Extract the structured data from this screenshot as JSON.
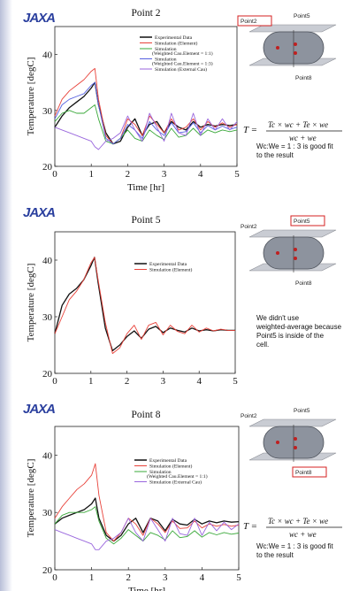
{
  "logo": "JAXA",
  "common": {
    "xlabel": "Time [hr]",
    "ylabel": "Temperature [degC]"
  },
  "panels": [
    {
      "title": "Point 2",
      "highlight": "Point2",
      "cell_labels": [
        "Point2",
        "Point5",
        "Point8"
      ],
      "legend": [
        "Experimental Data",
        "Simulation (Element)",
        "Simulation",
        "(Weighted Cau.Element = 1:1)",
        "Simulation",
        "(Weighted Cau.Element = 1:3)",
        "Simulation (External Cau)"
      ],
      "formula": "T = (Tc × wc + Te × we) / (wc + we)",
      "note": "Wc:We = 1 : 3 is good fit to the result"
    },
    {
      "title": "Point 5",
      "highlight": "Point5",
      "cell_labels": [
        "Point2",
        "Point5",
        "Point8"
      ],
      "legend": [
        "Experimental Data",
        "Simulation (Element)"
      ],
      "note": "We didn't use weighted-average because Point5 is inside of the cell."
    },
    {
      "title": "Point 8",
      "highlight": "Point8",
      "cell_labels": [
        "Point2",
        "Point5",
        "Point8"
      ],
      "legend": [
        "Experimental Data",
        "Simulation (Element)",
        "Simulation",
        "(Weighted Cau.Element = 1:1)",
        "Simulation (External Cau)"
      ],
      "formula": "T = (Tc × wc + Te × we) / (wc + we)",
      "note": "Wc:We = 1 : 3 is good fit to the result"
    }
  ],
  "colors": {
    "exp": "#111111",
    "element": "#e8423a",
    "weighted11": "#3aa83a",
    "weighted13": "#5560e0",
    "external": "#9966dd",
    "highlight": "#d42020"
  },
  "chart_data": [
    {
      "type": "line",
      "title": "Point 2",
      "xlabel": "Time [hr]",
      "ylabel": "Temperature [degC]",
      "xlim": [
        0,
        5
      ],
      "ylim": [
        20,
        45
      ],
      "xticks": [
        0,
        1,
        2,
        3,
        4,
        5
      ],
      "yticks": [
        20,
        30,
        40
      ],
      "x": [
        0,
        0.2,
        0.4,
        0.6,
        0.8,
        1.0,
        1.1,
        1.2,
        1.4,
        1.6,
        1.8,
        2.0,
        2.2,
        2.4,
        2.6,
        2.8,
        3.0,
        3.2,
        3.4,
        3.6,
        3.8,
        4.0,
        4.2,
        4.4,
        4.6,
        4.8,
        5.0
      ],
      "series": [
        {
          "name": "Experimental Data",
          "values": [
            27,
            29,
            30.5,
            31.5,
            32.5,
            34,
            35,
            31,
            26,
            24,
            24.5,
            27,
            28.5,
            25.5,
            27.5,
            28,
            26,
            28,
            27,
            26.5,
            28,
            27,
            27.5,
            27.2,
            27.5,
            27.3,
            27.5
          ]
        },
        {
          "name": "Simulation (Element)",
          "values": [
            29,
            32,
            33.5,
            34.5,
            35.5,
            37,
            37.5,
            32,
            25.5,
            24,
            25,
            28.5,
            27.5,
            25.5,
            29,
            27.5,
            26,
            28.5,
            26.5,
            27,
            28.5,
            26.5,
            28,
            27,
            27.8,
            27,
            27.5
          ]
        },
        {
          "name": "Simulation (Weighted Cau.Element = 1:1)",
          "values": [
            28,
            29.5,
            30,
            29.5,
            29.5,
            30.5,
            31,
            28.5,
            24.5,
            24,
            25,
            26.5,
            25,
            24.5,
            26.5,
            25.5,
            24.8,
            26.8,
            25.2,
            25.5,
            26.8,
            25.5,
            26.5,
            26,
            26.5,
            26.2,
            26.5
          ]
        },
        {
          "name": "Simulation (Weighted Cau.Element = 1:3)",
          "values": [
            28.5,
            31,
            32,
            32.5,
            33,
            34.5,
            35,
            31,
            25,
            24,
            25,
            27.5,
            26.5,
            25,
            28,
            26.5,
            25.5,
            27.8,
            26,
            26.2,
            27.8,
            26,
            27.3,
            26.5,
            27.2,
            26.6,
            27
          ]
        },
        {
          "name": "Simulation (External Cau)",
          "values": [
            27,
            26.5,
            26,
            25.5,
            25,
            24.5,
            23.5,
            23,
            24.5,
            25,
            26,
            29,
            26.5,
            24.5,
            29.5,
            27,
            24.5,
            29.5,
            26,
            25.5,
            29.5,
            25.5,
            28.5,
            26.5,
            28.5,
            26.5,
            28
          ]
        }
      ]
    },
    {
      "type": "line",
      "title": "Point 5",
      "xlabel": "Time [hr]",
      "ylabel": "Temperature [degC]",
      "xlim": [
        0,
        5
      ],
      "ylim": [
        20,
        45
      ],
      "xticks": [
        0,
        1,
        2,
        3,
        4,
        5
      ],
      "yticks": [
        20,
        30,
        40
      ],
      "x": [
        0,
        0.2,
        0.4,
        0.6,
        0.8,
        1.0,
        1.1,
        1.2,
        1.4,
        1.6,
        1.8,
        2.0,
        2.2,
        2.4,
        2.6,
        2.8,
        3.0,
        3.2,
        3.4,
        3.6,
        3.8,
        4.0,
        4.2,
        4.4,
        4.6,
        4.8,
        5.0
      ],
      "series": [
        {
          "name": "Experimental Data",
          "values": [
            27,
            32,
            34,
            35,
            36.5,
            39,
            40.5,
            36,
            28,
            24,
            25,
            26.5,
            27.5,
            26.2,
            27.8,
            28.3,
            27.2,
            28,
            27.6,
            27.3,
            28,
            27.5,
            27.7,
            27.5,
            27.7,
            27.6,
            27.6
          ]
        },
        {
          "name": "Simulation (Element)",
          "values": [
            27,
            30,
            33,
            34.5,
            36.5,
            39.5,
            40.5,
            36.5,
            29,
            23.5,
            24.5,
            27,
            28.5,
            26,
            28.5,
            29,
            26.8,
            28.5,
            27.4,
            27,
            28.5,
            27.3,
            28,
            27.5,
            27.8,
            27.6,
            27.6
          ]
        }
      ]
    },
    {
      "type": "line",
      "title": "Point 8",
      "xlabel": "Time [hr]",
      "ylabel": "Temperature [degC]",
      "xlim": [
        0,
        5
      ],
      "ylim": [
        20,
        45
      ],
      "xticks": [
        0,
        1,
        2,
        3,
        4,
        5
      ],
      "yticks": [
        20,
        30,
        40
      ],
      "x": [
        0,
        0.2,
        0.4,
        0.6,
        0.8,
        1.0,
        1.1,
        1.2,
        1.4,
        1.6,
        1.8,
        2.0,
        2.2,
        2.4,
        2.6,
        2.8,
        3.0,
        3.2,
        3.4,
        3.6,
        3.8,
        4.0,
        4.2,
        4.4,
        4.6,
        4.8,
        5.0
      ],
      "series": [
        {
          "name": "Experimental Data",
          "values": [
            28,
            29,
            29.5,
            30,
            30.5,
            31.5,
            32.5,
            29,
            26,
            25,
            26,
            28,
            29,
            26.5,
            29,
            28.5,
            26.8,
            28.8,
            28,
            27.8,
            28.8,
            28,
            28.5,
            28.2,
            28.5,
            28.3,
            28.4
          ]
        },
        {
          "name": "Simulation (Element)",
          "values": [
            29,
            31,
            32.5,
            34,
            35,
            36.5,
            38.5,
            33,
            26.5,
            25,
            26.5,
            29,
            28,
            26,
            29,
            28,
            26.5,
            28.5,
            27.2,
            27.3,
            28.5,
            27.3,
            28,
            27.6,
            27.9,
            27.6,
            27.8
          ]
        },
        {
          "name": "Simulation (Weighted Cau.Element = 1:1)",
          "values": [
            28,
            29.5,
            30,
            30,
            30,
            30.5,
            31,
            28.5,
            25.5,
            24.5,
            25.5,
            27,
            26,
            25,
            26.5,
            26,
            25.2,
            26.8,
            25.6,
            25.8,
            26.8,
            25.7,
            26.5,
            26.1,
            26.5,
            26.2,
            26.4
          ]
        },
        {
          "name": "Simulation (External Cau)",
          "values": [
            27,
            26.5,
            26,
            25.5,
            25,
            24.5,
            23.5,
            23.5,
            25,
            25.5,
            26.5,
            29,
            26.5,
            25,
            29,
            27,
            25,
            29,
            26.3,
            26,
            29,
            26,
            28.3,
            26.8,
            28.3,
            27,
            28
          ]
        }
      ]
    }
  ]
}
